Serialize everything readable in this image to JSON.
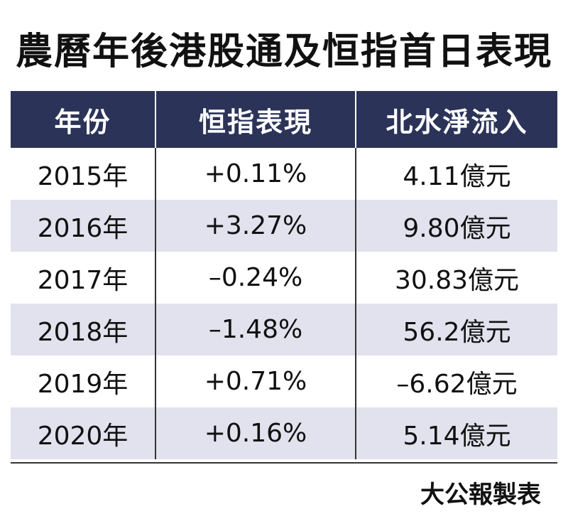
{
  "header": {
    "title": "農曆年後港股通及恒指首日表現"
  },
  "table": {
    "columns": [
      "年份",
      "恒指表現",
      "北水淨流入"
    ],
    "rows": [
      [
        "2015年",
        "+0.11%",
        "4.11億元"
      ],
      [
        "2016年",
        "+3.27%",
        "9.80億元"
      ],
      [
        "2017年",
        "–0.24%",
        "30.83億元"
      ],
      [
        "2018年",
        "–1.48%",
        "56.2億元"
      ],
      [
        "2019年",
        "+0.71%",
        "–6.62億元"
      ],
      [
        "2020年",
        "+0.16%",
        "5.14億元"
      ]
    ]
  },
  "footer": {
    "credit": "大公報製表"
  }
}
